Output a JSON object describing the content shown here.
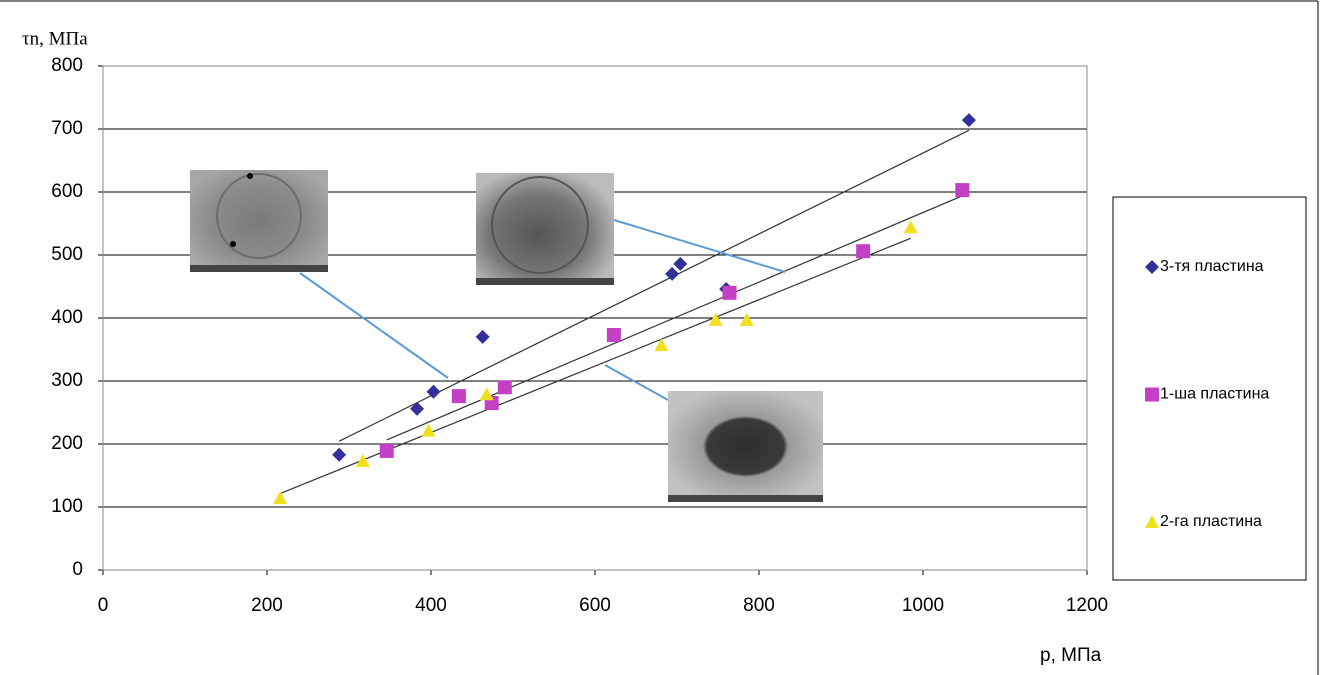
{
  "chart_data": {
    "type": "scatter",
    "x_label": "p, МПа",
    "y_label": "τn, МПа",
    "xlim": [
      0,
      1200
    ],
    "xticks": [
      0,
      200,
      400,
      600,
      800,
      1000,
      1200
    ],
    "ylim": [
      0,
      800
    ],
    "yticks": [
      0,
      100,
      200,
      300,
      400,
      500,
      600,
      700,
      800
    ],
    "grid": true,
    "trendline": true,
    "legend": "right",
    "series": [
      {
        "name": "3-тя пластина",
        "color": "#33309a",
        "marker": "diamond",
        "x": [
          288,
          383,
          403,
          463,
          694,
          704,
          760,
          1056
        ],
        "values": [
          183,
          256,
          283,
          370,
          470,
          486,
          446,
          714
        ]
      },
      {
        "name": "1-ша пластина",
        "color": "#c33fc3",
        "marker": "square",
        "x": [
          346,
          434,
          474,
          490,
          623,
          764,
          927,
          1048
        ],
        "values": [
          189,
          276,
          265,
          290,
          373,
          440,
          506,
          603
        ]
      },
      {
        "name": "2-га пластина",
        "color": "#f0e020",
        "marker": "triangle",
        "x": [
          216,
          317,
          397,
          468,
          681,
          747,
          785,
          985
        ],
        "values": [
          114,
          173,
          221,
          279,
          357,
          397,
          397,
          544
        ]
      }
    ]
  }
}
